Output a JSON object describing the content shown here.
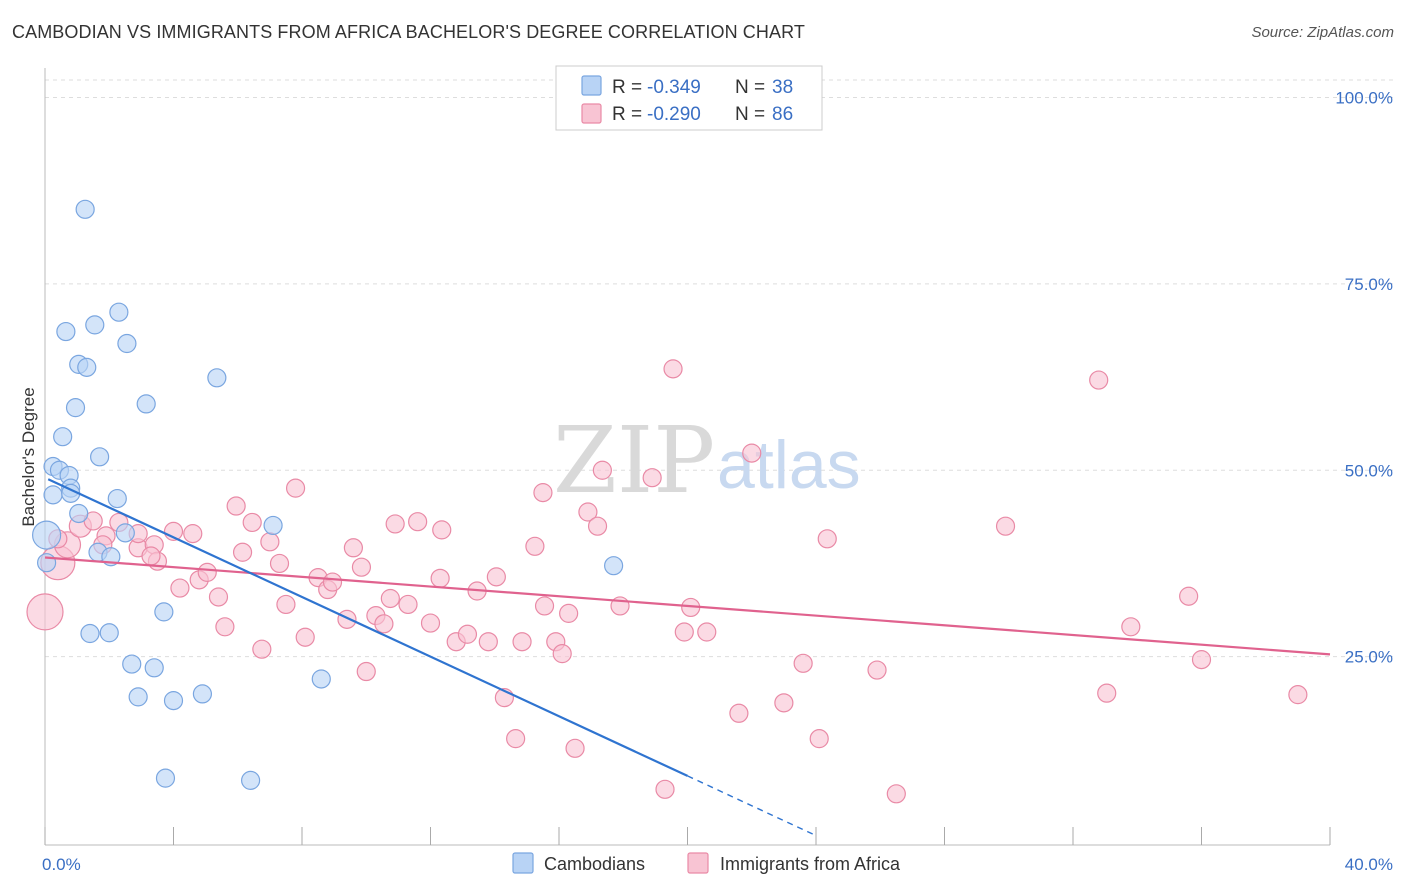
{
  "title": "CAMBODIAN VS IMMIGRANTS FROM AFRICA BACHELOR'S DEGREE CORRELATION CHART",
  "source": "Source: ZipAtlas.com",
  "watermark": {
    "zip": "ZIP",
    "atlas": "atlas"
  },
  "colors": {
    "blue_fill": "#b8d3f5",
    "blue_stroke": "#7aa6e0",
    "blue_line": "#2f74d0",
    "pink_fill": "#f8c4d3",
    "pink_stroke": "#e98aa6",
    "pink_line": "#e0628e",
    "tick_text": "#3a6fc4",
    "grid": "#dddddd"
  },
  "legend_top": {
    "rows": [
      {
        "r_label": "R =",
        "r_value": "-0.349",
        "n_label": "N =",
        "n_value": "38"
      },
      {
        "r_label": "R =",
        "r_value": "-0.290",
        "n_label": "N =",
        "n_value": "86"
      }
    ]
  },
  "legend_bottom": [
    "Cambodians",
    "Immigrants from Africa"
  ],
  "chart_data": {
    "type": "scatter",
    "title": "CAMBODIAN VS IMMIGRANTS FROM AFRICA BACHELOR'S DEGREE CORRELATION CHART",
    "ylabel": "Bachelor's Degree",
    "xlabel": "",
    "xlim": [
      0,
      40
    ],
    "ylim": [
      0,
      100
    ],
    "x_tick_labels": [
      "0.0%",
      "40.0%"
    ],
    "y_ticks": [
      25,
      50,
      75,
      100
    ],
    "y_tick_labels": [
      "25.0%",
      "50.0%",
      "75.0%",
      "100.0%"
    ],
    "series": [
      {
        "name": "Cambodians",
        "R": -0.349,
        "N": 38,
        "trend": {
          "x0": 0.1,
          "y0": 48.8,
          "x1": 20.0,
          "y1": 9.0,
          "dash_to_x": 24.0,
          "dash_to_y": 1.0
        },
        "points": [
          [
            1.25,
            85.0
          ],
          [
            1.55,
            69.5
          ],
          [
            2.3,
            71.2
          ],
          [
            0.65,
            68.6
          ],
          [
            2.55,
            67.0
          ],
          [
            1.05,
            64.2
          ],
          [
            1.3,
            63.8
          ],
          [
            5.35,
            62.4
          ],
          [
            3.15,
            58.9
          ],
          [
            0.95,
            58.4
          ],
          [
            0.55,
            54.5
          ],
          [
            1.7,
            51.8
          ],
          [
            0.25,
            50.5
          ],
          [
            0.45,
            50.0
          ],
          [
            0.75,
            49.3
          ],
          [
            0.8,
            47.6
          ],
          [
            0.25,
            46.7
          ],
          [
            0.8,
            46.9
          ],
          [
            2.25,
            46.2
          ],
          [
            1.05,
            44.2
          ],
          [
            7.1,
            42.6
          ],
          [
            2.5,
            41.6
          ],
          [
            0.05,
            41.3
          ],
          [
            1.65,
            39.0
          ],
          [
            2.05,
            38.4
          ],
          [
            17.7,
            37.2
          ],
          [
            3.7,
            31.0
          ],
          [
            1.4,
            28.1
          ],
          [
            2.0,
            28.2
          ],
          [
            2.7,
            24.0
          ],
          [
            3.4,
            23.5
          ],
          [
            8.6,
            22.0
          ],
          [
            2.9,
            19.6
          ],
          [
            4.0,
            19.1
          ],
          [
            4.9,
            20.0
          ],
          [
            3.75,
            8.7
          ],
          [
            6.4,
            8.4
          ],
          [
            0.05,
            37.6
          ]
        ],
        "sizes": [
          9,
          9,
          9,
          9,
          9,
          9,
          9,
          9,
          9,
          9,
          9,
          9,
          9,
          9,
          9,
          9,
          9,
          9,
          9,
          9,
          9,
          9,
          14,
          9,
          9,
          9,
          9,
          9,
          9,
          9,
          9,
          9,
          9,
          9,
          9,
          9,
          9,
          9
        ]
      },
      {
        "name": "Immigrants from Africa",
        "R": -0.29,
        "N": 86,
        "trend": {
          "x0": 0.0,
          "y0": 38.3,
          "x1": 40.0,
          "y1": 25.3
        },
        "points": [
          [
            0.0,
            31.0
          ],
          [
            0.4,
            37.6
          ],
          [
            0.7,
            40.0
          ],
          [
            1.1,
            42.5
          ],
          [
            1.5,
            43.2
          ],
          [
            1.9,
            41.2
          ],
          [
            2.3,
            43.0
          ],
          [
            2.9,
            39.6
          ],
          [
            3.4,
            40.0
          ],
          [
            3.5,
            37.8
          ],
          [
            4.0,
            41.8
          ],
          [
            4.6,
            41.5
          ],
          [
            4.2,
            34.2
          ],
          [
            4.8,
            35.3
          ],
          [
            5.05,
            36.3
          ],
          [
            5.4,
            33.0
          ],
          [
            5.6,
            29.0
          ],
          [
            5.95,
            45.2
          ],
          [
            6.15,
            39.0
          ],
          [
            6.45,
            43.0
          ],
          [
            6.75,
            26.0
          ],
          [
            7.0,
            40.4
          ],
          [
            7.3,
            37.5
          ],
          [
            7.5,
            32.0
          ],
          [
            7.8,
            47.6
          ],
          [
            8.1,
            27.6
          ],
          [
            8.5,
            35.6
          ],
          [
            8.8,
            34.0
          ],
          [
            8.95,
            35.0
          ],
          [
            9.4,
            30.0
          ],
          [
            9.6,
            39.6
          ],
          [
            9.85,
            37.0
          ],
          [
            10.0,
            23.0
          ],
          [
            10.3,
            30.5
          ],
          [
            10.55,
            29.4
          ],
          [
            10.75,
            32.8
          ],
          [
            10.9,
            42.8
          ],
          [
            11.3,
            32.0
          ],
          [
            11.6,
            43.1
          ],
          [
            12.0,
            29.5
          ],
          [
            12.3,
            35.5
          ],
          [
            12.35,
            42.0
          ],
          [
            12.8,
            27.0
          ],
          [
            13.15,
            28.0
          ],
          [
            13.45,
            33.8
          ],
          [
            13.8,
            27.0
          ],
          [
            14.05,
            35.7
          ],
          [
            14.3,
            19.5
          ],
          [
            14.65,
            14.0
          ],
          [
            14.85,
            27.0
          ],
          [
            15.25,
            39.8
          ],
          [
            15.5,
            47.0
          ],
          [
            15.55,
            31.8
          ],
          [
            15.9,
            27.0
          ],
          [
            16.1,
            25.4
          ],
          [
            16.3,
            30.8
          ],
          [
            16.5,
            12.7
          ],
          [
            16.9,
            44.4
          ],
          [
            17.2,
            42.5
          ],
          [
            17.35,
            50.0
          ],
          [
            17.9,
            31.8
          ],
          [
            18.9,
            49.0
          ],
          [
            19.3,
            7.2
          ],
          [
            19.55,
            63.6
          ],
          [
            19.9,
            28.3
          ],
          [
            20.1,
            31.6
          ],
          [
            20.6,
            28.3
          ],
          [
            21.6,
            17.4
          ],
          [
            22.0,
            52.3
          ],
          [
            23.0,
            18.8
          ],
          [
            23.6,
            24.1
          ],
          [
            24.1,
            14.0
          ],
          [
            24.35,
            40.8
          ],
          [
            25.9,
            23.2
          ],
          [
            26.5,
            6.6
          ],
          [
            29.9,
            42.5
          ],
          [
            32.8,
            62.1
          ],
          [
            33.05,
            20.1
          ],
          [
            33.8,
            29.0
          ],
          [
            35.6,
            33.1
          ],
          [
            36.0,
            24.6
          ],
          [
            39.0,
            19.9
          ],
          [
            0.4,
            40.8
          ],
          [
            1.8,
            40.0
          ],
          [
            2.9,
            41.5
          ],
          [
            3.3,
            38.5
          ]
        ],
        "sizes": [
          18,
          17,
          13,
          11,
          9,
          9,
          9,
          9,
          9,
          9,
          9,
          9,
          9,
          9,
          9,
          9,
          9,
          9,
          9,
          9,
          9,
          9,
          9,
          9,
          9,
          9,
          9,
          9,
          9,
          9,
          9,
          9,
          9,
          9,
          9,
          9,
          9,
          9,
          9,
          9,
          9,
          9,
          9,
          9,
          9,
          9,
          9,
          9,
          9,
          9,
          9,
          9,
          9,
          9,
          9,
          9,
          9,
          9,
          9,
          9,
          9,
          9,
          9,
          9,
          9,
          9,
          9,
          9,
          9,
          9,
          9,
          9,
          9,
          9,
          9,
          9,
          9,
          9,
          9,
          9,
          9,
          9,
          9,
          9,
          9,
          9
        ]
      }
    ]
  }
}
